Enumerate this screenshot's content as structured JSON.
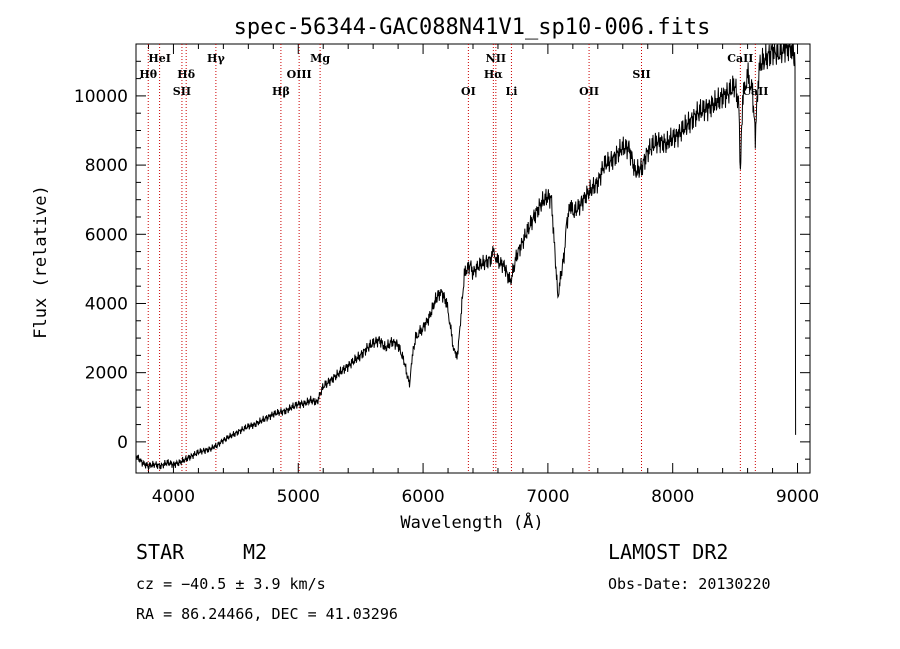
{
  "chart_data": {
    "type": "line",
    "title": "spec-56344-GAC088N41V1_sp10-006.fits",
    "xlabel": "Wavelength (Å)",
    "ylabel": "Flux (relative)",
    "xlim": [
      3700,
      9100
    ],
    "ylim": [
      -900,
      11500
    ],
    "x_ticks": [
      4000,
      5000,
      6000,
      7000,
      8000,
      9000
    ],
    "x_tick_labels": [
      "4000",
      "5000",
      "6000",
      "7000",
      "8000",
      "9000"
    ],
    "y_ticks": [
      0,
      2000,
      4000,
      6000,
      8000,
      10000
    ],
    "y_tick_labels": [
      "0",
      "2000",
      "4000",
      "6000",
      "8000",
      "10000"
    ],
    "grid": false,
    "line_color": "#000000",
    "marker_color": "#cc0000",
    "series": [
      {
        "x": [
          3700,
          3750,
          3800,
          3850,
          3900,
          3950,
          4000,
          4050,
          4100,
          4150,
          4200,
          4250,
          4300,
          4350,
          4400,
          4450,
          4500,
          4550,
          4600,
          4650,
          4700,
          4750,
          4800,
          4850,
          4900,
          4950,
          5000,
          5050,
          5100,
          5150,
          5200,
          5250,
          5300,
          5350,
          5400,
          5450,
          5500,
          5550,
          5600,
          5650,
          5700,
          5750,
          5800,
          5850,
          5880,
          5895,
          5910,
          5940,
          6000,
          6050,
          6100,
          6130,
          6150,
          6180,
          6200,
          6240,
          6260,
          6280,
          6300,
          6330,
          6350,
          6380,
          6400,
          6450,
          6500,
          6550,
          6563,
          6600,
          6650,
          6680,
          6700,
          6750,
          6800,
          6850,
          6900,
          6950,
          7000,
          7030,
          7050,
          7080,
          7100,
          7130,
          7150,
          7180,
          7200,
          7250,
          7300,
          7350,
          7400,
          7450,
          7500,
          7550,
          7600,
          7650,
          7700,
          7750,
          7800,
          7850,
          7900,
          7950,
          8000,
          8050,
          8100,
          8150,
          8200,
          8250,
          8300,
          8350,
          8400,
          8450,
          8500,
          8530,
          8542,
          8560,
          8600,
          8640,
          8662,
          8680,
          8700,
          8750,
          8800,
          8850,
          8900,
          8950,
          8970,
          8980,
          8985
        ],
        "y": [
          -400,
          -600,
          -700,
          -650,
          -700,
          -600,
          -650,
          -600,
          -500,
          -400,
          -300,
          -250,
          -200,
          -100,
          50,
          150,
          250,
          350,
          450,
          500,
          600,
          700,
          800,
          850,
          900,
          1000,
          1100,
          1100,
          1200,
          1150,
          1600,
          1750,
          1900,
          2050,
          2200,
          2350,
          2500,
          2700,
          2850,
          2950,
          2700,
          2900,
          2800,
          2300,
          1800,
          1700,
          2400,
          3000,
          3300,
          3600,
          4100,
          4300,
          4300,
          4100,
          3800,
          2800,
          2500,
          2600,
          3500,
          4800,
          5000,
          5100,
          4900,
          5100,
          5200,
          5300,
          5500,
          5200,
          5100,
          4800,
          4600,
          5400,
          5800,
          6200,
          6600,
          6900,
          7100,
          7000,
          5800,
          4200,
          4700,
          5400,
          6300,
          6900,
          6600,
          6800,
          7100,
          7300,
          7500,
          8000,
          8100,
          8300,
          8500,
          8500,
          7800,
          7900,
          8400,
          8600,
          8700,
          8600,
          8800,
          8900,
          9100,
          9300,
          9500,
          9600,
          9700,
          9800,
          10000,
          10100,
          10300,
          9700,
          7800,
          9900,
          10600,
          10100,
          8800,
          10200,
          10900,
          11100,
          11300,
          11200,
          11400,
          11400,
          11100,
          11000,
          200
        ]
      }
    ],
    "lines": [
      {
        "label": "Hθ",
        "x": 3798,
        "tier": 1
      },
      {
        "label": "HeI",
        "x": 3889,
        "tier": 0
      },
      {
        "label": "Hδ",
        "x": 4102,
        "tier": 1
      },
      {
        "label": "SII",
        "x": 4068,
        "tier": 2
      },
      {
        "label": "Hγ",
        "x": 4340,
        "tier": 0
      },
      {
        "label": "Hβ",
        "x": 4861,
        "tier": 2
      },
      {
        "label": "OIII",
        "x": 5007,
        "tier": 1
      },
      {
        "label": "Mg",
        "x": 5175,
        "tier": 0
      },
      {
        "label": "OI",
        "x": 6363,
        "tier": 2
      },
      {
        "label": "NII",
        "x": 6583,
        "tier": 0
      },
      {
        "label": "Hα",
        "x": 6563,
        "tier": 1
      },
      {
        "label": "Li",
        "x": 6708,
        "tier": 2
      },
      {
        "label": "OII",
        "x": 7330,
        "tier": 2
      },
      {
        "label": "SII",
        "x": 7750,
        "tier": 1
      },
      {
        "label": "CaII",
        "x": 8542,
        "tier": 0
      },
      {
        "label": "CaII",
        "x": 8662,
        "tier": 2
      }
    ]
  },
  "info": {
    "class_label": "STAR",
    "subclass": "M2",
    "cz": "cz = −40.5 ± 3.9 km/s",
    "coords": "RA =  86.24466, DEC =  41.03296",
    "survey": "LAMOST DR2",
    "obs_date": "Obs-Date: 20130220"
  }
}
